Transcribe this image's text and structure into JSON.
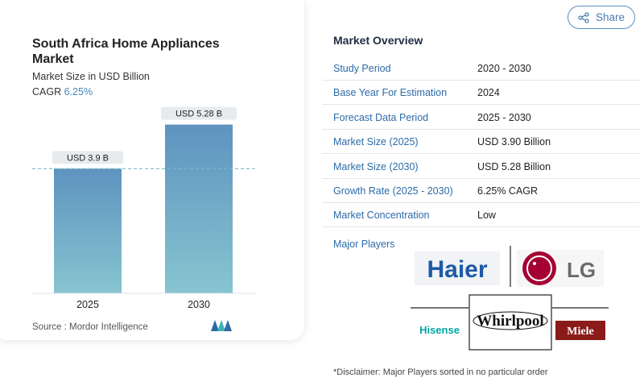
{
  "chart": {
    "title": "South Africa Home Appliances Market",
    "subtitle": "Market Size in USD Billion",
    "cagr_label": "CAGR",
    "cagr_value": "6.25%",
    "source": "Source :  Mordor Intelligence"
  },
  "chart_data": {
    "type": "bar",
    "categories": [
      "2025",
      "2030"
    ],
    "values": [
      3.9,
      5.28
    ],
    "data_labels": [
      "USD 3.9 B",
      "USD 5.28 B"
    ],
    "title": "South Africa Home Appliances Market",
    "ylabel": "Market Size in USD Billion",
    "xlabel": "",
    "ylim": [
      0,
      5.9
    ],
    "grid": false,
    "colors": {
      "bar_top": "#5e93bf",
      "bar_bottom": "#86c5d0",
      "label_bg": "#e8ebee",
      "guide_line": "#7fb8c4"
    }
  },
  "share": {
    "label": "Share",
    "icon": "share-icon"
  },
  "overview": {
    "title": "Market Overview",
    "rows": [
      {
        "label": "Study Period",
        "value": "2020 - 2030"
      },
      {
        "label": "Base Year For Estimation",
        "value": "2024"
      },
      {
        "label": "Forecast Data Period",
        "value": "2025 - 2030"
      },
      {
        "label": "Market Size (2025)",
        "value": "USD 3.90 Billion"
      },
      {
        "label": "Market Size (2030)",
        "value": "USD 5.28 Billion"
      },
      {
        "label": "Growth Rate (2025 - 2030)",
        "value": "6.25% CAGR"
      },
      {
        "label": "Market Concentration",
        "value": "Low"
      }
    ],
    "players_label": "Major Players",
    "players": [
      "Haier",
      "LG",
      "Hisense",
      "Whirlpool",
      "Miele"
    ],
    "disclaimer": "*Disclaimer: Major Players sorted in no particular order"
  },
  "colors": {
    "accent": "#2c6ba8",
    "haier_blue": "#1c5aa6",
    "lg_red": "#a50034",
    "hisense_teal": "#00a6a0",
    "miele_red": "#8b1a1a"
  }
}
